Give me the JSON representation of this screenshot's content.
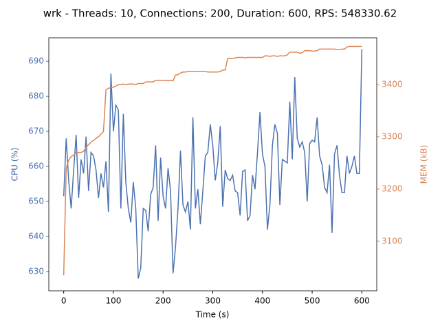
{
  "chart_data": {
    "type": "line",
    "title": "wrk - Threads: 10, Connections: 200, Duration: 600, RPS: 548330.62",
    "x_label": "Time (s)",
    "y_label": "CPU (%)",
    "y2_label": "MEM (kB)",
    "x": [
      0,
      5,
      10,
      15,
      20,
      25,
      30,
      35,
      40,
      45,
      50,
      55,
      60,
      65,
      70,
      75,
      80,
      85,
      90,
      95,
      100,
      105,
      110,
      115,
      120,
      125,
      130,
      135,
      140,
      145,
      150,
      155,
      160,
      165,
      170,
      175,
      180,
      185,
      190,
      195,
      200,
      205,
      210,
      215,
      220,
      225,
      230,
      235,
      240,
      245,
      250,
      255,
      260,
      265,
      270,
      275,
      280,
      285,
      290,
      295,
      300,
      305,
      310,
      315,
      320,
      325,
      330,
      335,
      340,
      345,
      350,
      355,
      360,
      365,
      370,
      375,
      380,
      385,
      390,
      395,
      400,
      405,
      410,
      415,
      420,
      425,
      430,
      435,
      440,
      445,
      450,
      455,
      460,
      465,
      470,
      475,
      480,
      485,
      490,
      495,
      500,
      505,
      510,
      515,
      520,
      525,
      530,
      535,
      540,
      545,
      550,
      555,
      560,
      565,
      570,
      575,
      580,
      585,
      590,
      595,
      600
    ],
    "series": [
      {
        "name": "CPU (%)",
        "color": "#4c72b0",
        "axis": "y",
        "values": [
          651.5,
          668,
          656,
          648,
          659,
          669,
          651,
          662,
          658,
          668.5,
          653,
          664,
          663,
          659,
          651,
          658,
          654,
          661.5,
          647,
          686.5,
          670,
          677.5,
          676,
          648,
          675,
          655.5,
          648,
          644,
          655.5,
          648,
          628,
          631,
          648,
          647.5,
          641.5,
          652,
          654,
          666,
          644.5,
          662.5,
          651.5,
          648,
          659.5,
          653,
          629.5,
          637,
          648,
          664.5,
          649,
          647,
          650,
          642,
          674,
          648,
          653.5,
          643.5,
          653,
          663,
          664,
          672,
          666,
          656,
          661,
          671.5,
          648.5,
          659,
          656.5,
          656,
          657.5,
          653,
          652.5,
          646,
          658.5,
          659,
          644.5,
          646,
          657.5,
          653.5,
          664,
          675.5,
          663.5,
          660,
          642,
          649,
          666,
          672,
          669.5,
          649,
          662,
          661.5,
          661,
          678.5,
          662,
          685.5,
          668,
          665.5,
          667,
          664,
          650,
          666.5,
          667.5,
          667,
          674,
          663,
          660.5,
          654,
          652.5,
          660.5,
          641,
          663.5,
          666,
          657.5,
          652.5,
          652.5,
          663,
          658,
          660,
          663,
          658,
          658,
          693.5
        ]
      },
      {
        "name": "MEM (kB)",
        "color": "#dd8452",
        "axis": "y2",
        "values": [
          3035,
          3240,
          3255,
          3262,
          3265,
          3270,
          3270,
          3270,
          3272,
          3280,
          3285,
          3290,
          3293,
          3297,
          3300,
          3305,
          3310,
          3390,
          3393,
          3394,
          3395,
          3397,
          3400,
          3400,
          3401,
          3400,
          3401,
          3401,
          3401,
          3400,
          3402,
          3402,
          3402,
          3405,
          3405,
          3405,
          3405,
          3408,
          3408,
          3408,
          3408,
          3408,
          3407,
          3408,
          3407,
          3418,
          3419,
          3422,
          3424,
          3424,
          3425,
          3425,
          3425,
          3425,
          3425,
          3425,
          3425,
          3425,
          3424,
          3424,
          3424,
          3424,
          3424,
          3425,
          3428,
          3428,
          3450,
          3450,
          3450,
          3451,
          3452,
          3452,
          3452,
          3451,
          3452,
          3452,
          3452,
          3452,
          3452,
          3452,
          3452,
          3455,
          3455,
          3454,
          3455,
          3455,
          3454,
          3455,
          3455,
          3455,
          3457,
          3462,
          3462,
          3462,
          3462,
          3460,
          3461,
          3465,
          3465,
          3465,
          3464,
          3464,
          3465,
          3468,
          3468,
          3468,
          3468,
          3468,
          3468,
          3468,
          3467,
          3467,
          3468,
          3468,
          3472,
          3473,
          3473,
          3473,
          3473,
          3473,
          3473
        ]
      }
    ],
    "xlim": [
      -30,
      630
    ],
    "xticks": [
      0,
      100,
      200,
      300,
      400,
      500,
      600
    ],
    "ylim": [
      624.5,
      696.7
    ],
    "yticks": [
      630,
      640,
      650,
      660,
      670,
      680,
      690
    ],
    "y2lim": [
      3005,
      3489.5
    ],
    "y2ticks": [
      3100,
      3200,
      3300,
      3400
    ],
    "grid": false
  }
}
